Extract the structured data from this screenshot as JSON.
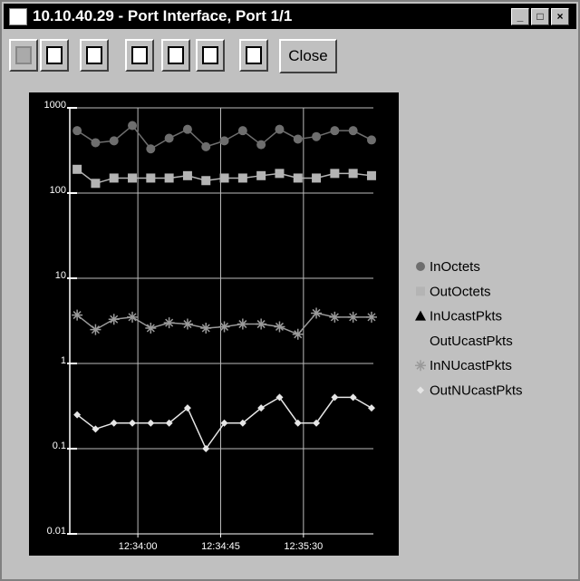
{
  "window": {
    "title": "10.10.40.29 - Port Interface, Port 1/1",
    "close_button": "Close"
  },
  "chart_data": {
    "type": "line",
    "x": [
      45207,
      45217,
      45227,
      45237,
      45247,
      45257,
      45267,
      45277,
      45287,
      45297,
      45307,
      45317,
      45327,
      45337,
      45347,
      45357,
      45367
    ],
    "xlim": [
      45203,
      45368
    ],
    "xticks": [
      {
        "value": 45240,
        "label": "12:34:00"
      },
      {
        "value": 45285,
        "label": "12:34:45"
      },
      {
        "value": 45330,
        "label": "12:35:30"
      }
    ],
    "ylim": [
      0.01,
      1000
    ],
    "yticks": [
      0.01,
      0.1,
      1,
      10,
      100,
      1000
    ],
    "log_scale": true,
    "grid": true,
    "legend": "right",
    "series": [
      {
        "name": "InOctets",
        "color": "#6e6e6e",
        "marker": "circle",
        "values": [
          540,
          390,
          410,
          620,
          330,
          440,
          560,
          350,
          410,
          540,
          370,
          560,
          430,
          460,
          540,
          540,
          420
        ]
      },
      {
        "name": "OutOctets",
        "color": "#b4b4b4",
        "marker": "square",
        "values": [
          190,
          130,
          150,
          150,
          150,
          150,
          160,
          140,
          150,
          150,
          160,
          170,
          150,
          150,
          170,
          170,
          160
        ]
      },
      {
        "name": "InUcastPkts",
        "color": "#000000",
        "marker": "triangle",
        "values": [
          null,
          null,
          null,
          null,
          null,
          null,
          null,
          null,
          null,
          null,
          null,
          null,
          null,
          null,
          null,
          null,
          null
        ]
      },
      {
        "name": "OutUcastPkts",
        "color": "#c0c0c0",
        "marker": "none",
        "values": [
          null,
          null,
          null,
          null,
          null,
          null,
          null,
          null,
          null,
          null,
          null,
          null,
          null,
          null,
          null,
          null,
          null
        ]
      },
      {
        "name": "InNUcastPkts",
        "color": "#9a9a9a",
        "marker": "star",
        "values": [
          3.7,
          2.5,
          3.3,
          3.5,
          2.6,
          3.0,
          2.9,
          2.6,
          2.7,
          2.9,
          2.9,
          2.7,
          2.2,
          3.9,
          3.5,
          3.5,
          3.5
        ]
      },
      {
        "name": "OutNUcastPkts",
        "color": "#e6e6e6",
        "marker": "diamond",
        "values": [
          0.25,
          0.17,
          0.2,
          0.2,
          0.2,
          0.2,
          0.3,
          0.1,
          0.2,
          0.2,
          0.3,
          0.4,
          0.2,
          0.2,
          0.4,
          0.4,
          0.3
        ]
      }
    ]
  }
}
